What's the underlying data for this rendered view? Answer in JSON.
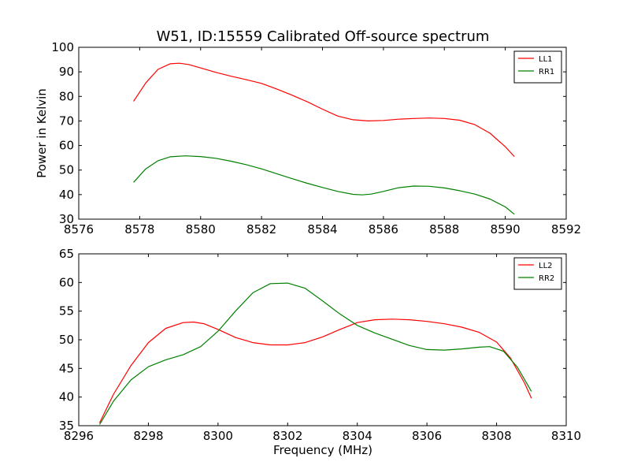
{
  "chart_data": [
    {
      "type": "line",
      "title": "W51, ID:15559 Calibrated Off-source spectrum",
      "xlabel": "",
      "ylabel": "Power in Kelvin",
      "xlim": [
        8576,
        8592
      ],
      "ylim": [
        30,
        100
      ],
      "xticks": [
        8576,
        8578,
        8580,
        8582,
        8584,
        8586,
        8588,
        8590,
        8592
      ],
      "yticks": [
        30,
        40,
        50,
        60,
        70,
        80,
        90,
        100
      ],
      "legend": "top-right",
      "series": [
        {
          "name": "LL1",
          "color": "#ff0000",
          "x": [
            8577.8,
            8578.2,
            8578.6,
            8579.0,
            8579.3,
            8579.6,
            8580.0,
            8580.5,
            8581.0,
            8581.5,
            8582.0,
            8582.5,
            8583.0,
            8583.5,
            8584.0,
            8584.5,
            8585.0,
            8585.5,
            8586.0,
            8586.5,
            8587.0,
            8587.5,
            8588.0,
            8588.5,
            8589.0,
            8589.5,
            8590.0,
            8590.3
          ],
          "y": [
            78,
            85.5,
            91,
            93.3,
            93.5,
            93,
            91.6,
            89.8,
            88.2,
            86.8,
            85.3,
            83.0,
            80.5,
            77.8,
            74.8,
            72.0,
            70.5,
            70.0,
            70.2,
            70.7,
            71.0,
            71.2,
            71.0,
            70.3,
            68.5,
            65.0,
            59.5,
            55.5
          ]
        },
        {
          "name": "RR1",
          "color": "#008000",
          "x": [
            8577.8,
            8578.2,
            8578.6,
            8579.0,
            8579.5,
            8580.0,
            8580.5,
            8581.0,
            8581.5,
            8582.0,
            8582.5,
            8583.0,
            8583.5,
            8584.0,
            8584.5,
            8585.0,
            8585.3,
            8585.6,
            8586.0,
            8586.5,
            8587.0,
            8587.5,
            8588.0,
            8588.5,
            8589.0,
            8589.5,
            8590.0,
            8590.3
          ],
          "y": [
            45,
            50.5,
            53.8,
            55.4,
            55.8,
            55.5,
            54.8,
            53.6,
            52.2,
            50.5,
            48.5,
            46.5,
            44.6,
            42.9,
            41.3,
            40.1,
            39.9,
            40.2,
            41.3,
            42.8,
            43.5,
            43.4,
            42.7,
            41.6,
            40.2,
            38.2,
            35.0,
            32.0
          ]
        }
      ]
    },
    {
      "type": "line",
      "title": "",
      "xlabel": "Frequency (MHz)",
      "ylabel": "",
      "xlim": [
        8296,
        8310
      ],
      "ylim": [
        35,
        65
      ],
      "xticks": [
        8296,
        8298,
        8300,
        8302,
        8304,
        8306,
        8308,
        8310
      ],
      "yticks": [
        35,
        40,
        45,
        50,
        55,
        60,
        65
      ],
      "legend": "top-right",
      "series": [
        {
          "name": "LL2",
          "color": "#ff0000",
          "x": [
            8296.6,
            8297.0,
            8297.5,
            8298.0,
            8298.5,
            8299.0,
            8299.3,
            8299.6,
            8300.0,
            8300.5,
            8301.0,
            8301.5,
            8302.0,
            8302.5,
            8303.0,
            8303.5,
            8304.0,
            8304.5,
            8305.0,
            8305.5,
            8306.0,
            8306.5,
            8307.0,
            8307.5,
            8308.0,
            8308.4,
            8308.8,
            8309.0
          ],
          "y": [
            35.5,
            40.5,
            45.5,
            49.5,
            52.0,
            53.0,
            53.1,
            52.8,
            51.8,
            50.4,
            49.5,
            49.1,
            49.1,
            49.5,
            50.5,
            51.8,
            53.0,
            53.5,
            53.6,
            53.5,
            53.2,
            52.8,
            52.2,
            51.3,
            49.6,
            46.8,
            42.5,
            39.8
          ]
        },
        {
          "name": "RR2",
          "color": "#008000",
          "x": [
            8296.6,
            8297.0,
            8297.5,
            8298.0,
            8298.5,
            8299.0,
            8299.5,
            8300.0,
            8300.5,
            8301.0,
            8301.5,
            8302.0,
            8302.5,
            8303.0,
            8303.5,
            8304.0,
            8304.5,
            8305.0,
            8305.5,
            8306.0,
            8306.5,
            8307.0,
            8307.5,
            8307.8,
            8308.2,
            8308.6,
            8309.0
          ],
          "y": [
            35.2,
            39.3,
            43.0,
            45.3,
            46.5,
            47.4,
            48.8,
            51.5,
            55.0,
            58.2,
            59.8,
            59.9,
            59.0,
            56.8,
            54.5,
            52.5,
            51.2,
            50.1,
            49.0,
            48.3,
            48.2,
            48.4,
            48.7,
            48.8,
            48.0,
            45.2,
            41.0
          ]
        }
      ]
    }
  ]
}
